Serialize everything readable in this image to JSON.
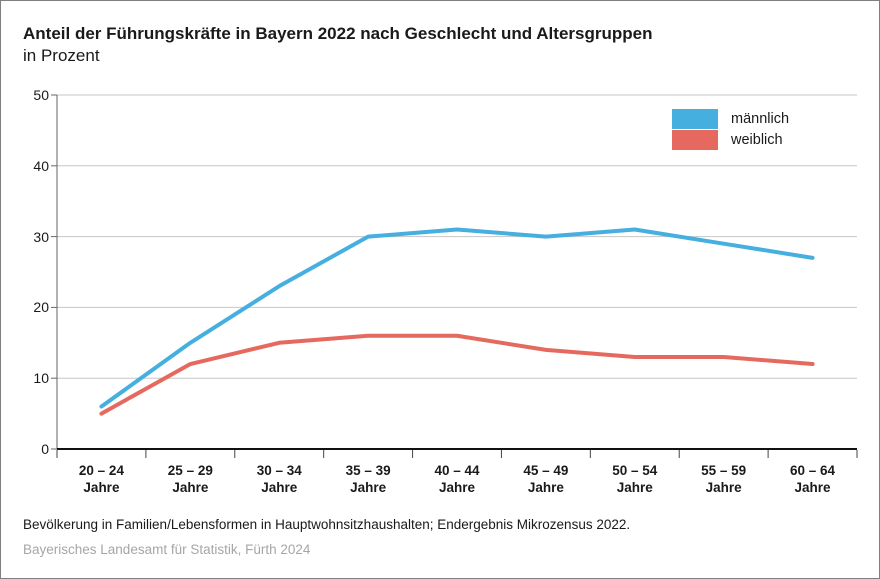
{
  "title": "Anteil der Führungskräfte in Bayern 2022 nach Geschlecht und Altersgruppen",
  "subtitle": "in Prozent",
  "footer": {
    "source": "Bevölkerung in Familien/Lebensformen in Hauptwohnsitzhaushalten; Endergebnis Mikrozensus 2022.",
    "publisher": "Bayerisches Landesamt für Statistik, Fürth 2024"
  },
  "colors": {
    "maennlich": "#45AFE0",
    "weiblich": "#E5695E",
    "grid": "#c6c6c6",
    "axis": "#111111",
    "tick": "#444444"
  },
  "chart_data": {
    "type": "line",
    "title": "Anteil der Führungskräfte in Bayern 2022 nach Geschlecht und Altersgruppen",
    "subtitle": "in Prozent",
    "categories": [
      "20 – 24",
      "25 – 29",
      "30 – 34",
      "35 – 39",
      "40 – 44",
      "45 – 49",
      "50 – 54",
      "55 – 59",
      "60 – 64"
    ],
    "category_suffix": "Jahre",
    "series": [
      {
        "name": "männlich",
        "color": "#45AFE0",
        "values": [
          6,
          15,
          23,
          30,
          31,
          30,
          31,
          29,
          27
        ]
      },
      {
        "name": "weiblich",
        "color": "#E5695E",
        "values": [
          5,
          12,
          15,
          16,
          16,
          14,
          13,
          13,
          12
        ]
      }
    ],
    "xlabel": "",
    "ylabel": "",
    "ylim": [
      0,
      50
    ],
    "yticks": [
      0,
      10,
      20,
      30,
      40,
      50
    ],
    "grid": true,
    "legend_position": "top-right"
  }
}
